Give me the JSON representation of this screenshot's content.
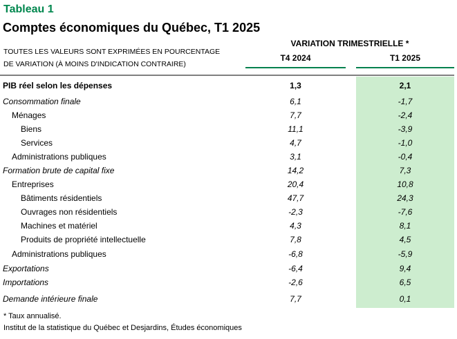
{
  "table_label": "Tableau 1",
  "title": "Comptes économiques du Québec, T1 2025",
  "units_note": {
    "line1": "TOUTES LES VALEURS SONT EXPRIMÉES EN POURCENTAGE",
    "line2": "DE VARIATION (À MOINS D'INDICATION CONTRAIRE)"
  },
  "header": {
    "group_label": "VARIATION TRIMESTRIELLE *",
    "columns": [
      "T4 2024",
      "T1 2025"
    ]
  },
  "rows": [
    {
      "label": "PIB réel selon les dépenses",
      "t4_2024": "1,3",
      "t1_2025": "2,1",
      "indent": 0,
      "style": "bold"
    },
    {
      "label": "Consommation finale",
      "t4_2024": "6,1",
      "t1_2025": "-1,7",
      "indent": 0,
      "style": "italic"
    },
    {
      "label": "Ménages",
      "t4_2024": "7,7",
      "t1_2025": "-2,4",
      "indent": 1,
      "style": "regular"
    },
    {
      "label": "Biens",
      "t4_2024": "11,1",
      "t1_2025": "-3,9",
      "indent": 2,
      "style": "regular"
    },
    {
      "label": "Services",
      "t4_2024": "4,7",
      "t1_2025": "-1,0",
      "indent": 2,
      "style": "regular"
    },
    {
      "label": "Administrations publiques",
      "t4_2024": "3,1",
      "t1_2025": "-0,4",
      "indent": 1,
      "style": "regular"
    },
    {
      "label": "Formation brute de capital fixe",
      "t4_2024": "14,2",
      "t1_2025": "7,3",
      "indent": 0,
      "style": "italic"
    },
    {
      "label": "Entreprises",
      "t4_2024": "20,4",
      "t1_2025": "10,8",
      "indent": 1,
      "style": "regular"
    },
    {
      "label": "Bâtiments résidentiels",
      "t4_2024": "47,7",
      "t1_2025": "24,3",
      "indent": 2,
      "style": "regular"
    },
    {
      "label": "Ouvrages non résidentiels",
      "t4_2024": "-2,3",
      "t1_2025": "-7,6",
      "indent": 2,
      "style": "regular"
    },
    {
      "label": "Machines et matériel",
      "t4_2024": "4,3",
      "t1_2025": "8,1",
      "indent": 2,
      "style": "regular"
    },
    {
      "label": "Produits de propriété intellectuelle",
      "t4_2024": "7,8",
      "t1_2025": "4,5",
      "indent": 2,
      "style": "regular"
    },
    {
      "label": "Administrations publiques",
      "t4_2024": "-6,8",
      "t1_2025": "-5,9",
      "indent": 1,
      "style": "regular"
    },
    {
      "label": "Exportations",
      "t4_2024": "-6,4",
      "t1_2025": "9,4",
      "indent": 0,
      "style": "italic"
    },
    {
      "label": "Importations",
      "t4_2024": "-2,6",
      "t1_2025": "6,5",
      "indent": 0,
      "style": "italic"
    },
    {
      "label": "Demande intérieure finale",
      "t4_2024": "7,7",
      "t1_2025": "0,1",
      "indent": 0,
      "style": "italic"
    }
  ],
  "footnotes": [
    "* Taux annualisé.",
    "Institut de la statistique du Québec et Desjardins, Études économiques"
  ],
  "colors": {
    "accent_green": "#00874E",
    "rule_green": "#00814E",
    "rule_gray": "#7F7F7F",
    "highlight_green": "#CDEDCF",
    "text": "#000000"
  }
}
